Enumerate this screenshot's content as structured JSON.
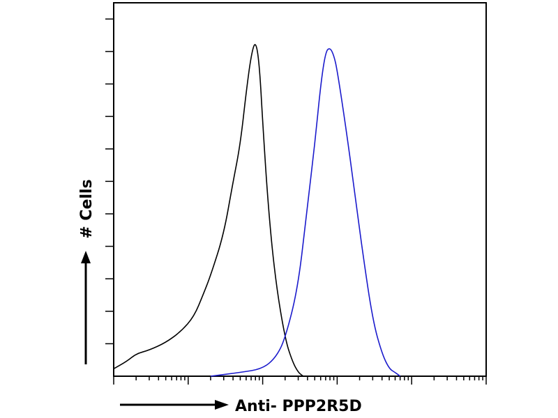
{
  "chart_data": {
    "type": "line",
    "title": "",
    "xlabel": "Anti- PPP2R5D",
    "ylabel": "# Cells",
    "x_scale": "log",
    "xlim": [
      1,
      100000
    ],
    "ylim": [
      0,
      1
    ],
    "grid": false,
    "legend": "none",
    "series": [
      {
        "color": "#000000",
        "x": [
          1,
          1.5,
          2,
          3,
          5,
          8,
          12,
          16,
          20,
          30,
          40,
          50,
          60,
          70,
          80,
          90,
          100,
          120,
          150,
          200,
          250,
          300,
          350
        ],
        "y": [
          0.02,
          0.04,
          0.06,
          0.07,
          0.09,
          0.12,
          0.16,
          0.22,
          0.27,
          0.38,
          0.52,
          0.62,
          0.76,
          0.86,
          0.9,
          0.84,
          0.68,
          0.44,
          0.25,
          0.1,
          0.04,
          0.01,
          0.0
        ]
      },
      {
        "color": "#1a1acc",
        "x": [
          20,
          50,
          100,
          150,
          200,
          300,
          400,
          500,
          600,
          700,
          800,
          900,
          1000,
          1300,
          1700,
          2200,
          3000,
          4000,
          5000,
          6000,
          7000
        ],
        "y": [
          0.0,
          0.01,
          0.02,
          0.05,
          0.1,
          0.24,
          0.46,
          0.62,
          0.78,
          0.87,
          0.88,
          0.86,
          0.82,
          0.67,
          0.5,
          0.33,
          0.15,
          0.06,
          0.02,
          0.01,
          0.0
        ]
      }
    ]
  }
}
